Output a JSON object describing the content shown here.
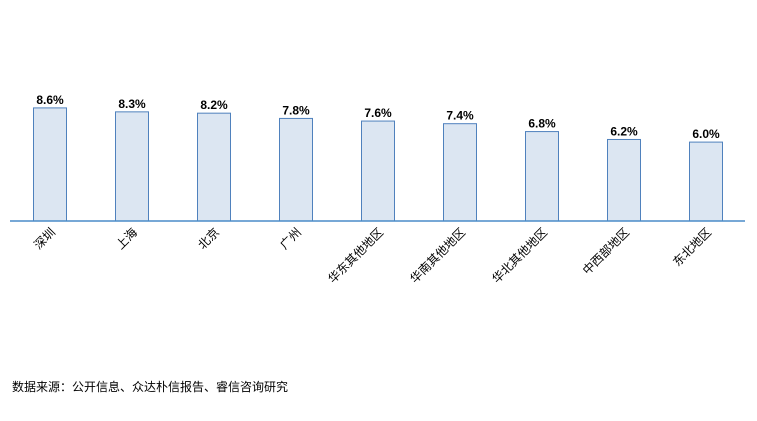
{
  "chart_data": {
    "type": "bar",
    "categories": [
      "深圳",
      "上海",
      "北京",
      "广州",
      "华东其他地区",
      "华南其他地区",
      "华北其他地区",
      "中西部地区",
      "东北地区"
    ],
    "values": [
      8.6,
      8.3,
      8.2,
      7.8,
      7.6,
      7.4,
      6.8,
      6.2,
      6.0
    ],
    "value_labels": [
      "8.6%",
      "8.3%",
      "8.2%",
      "7.8%",
      "7.6%",
      "7.4%",
      "6.8%",
      "6.2%",
      "6.0%"
    ],
    "color": "#dce6f2",
    "source": "数据来源：公开信息、众达朴信报告、睿信咨询研究"
  }
}
